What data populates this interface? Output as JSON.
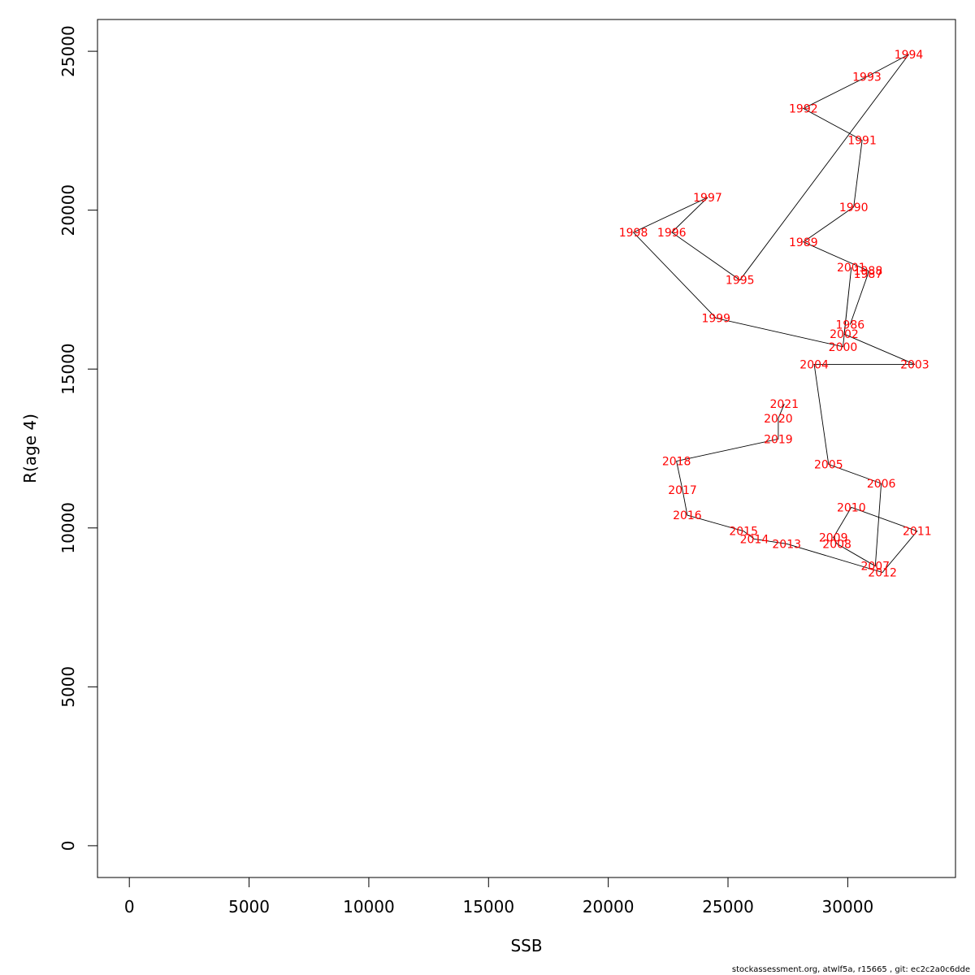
{
  "chart_data": {
    "type": "scatter",
    "xlabel": "SSB",
    "ylabel": "R(age 4)",
    "xlim": [
      -1330,
      34500
    ],
    "ylim": [
      -1000,
      26000
    ],
    "x_ticks": [
      0,
      5000,
      10000,
      15000,
      20000,
      25000,
      30000
    ],
    "y_ticks": [
      0,
      5000,
      10000,
      15000,
      20000,
      25000
    ],
    "label_color": "#ff0000",
    "line_color": "#000000",
    "points": [
      {
        "label": "1986",
        "x": 30100,
        "y": 16400
      },
      {
        "label": "1987",
        "x": 30850,
        "y": 18000
      },
      {
        "label": "1988",
        "x": 30850,
        "y": 18100
      },
      {
        "label": "1989",
        "x": 28150,
        "y": 19000
      },
      {
        "label": "1990",
        "x": 30250,
        "y": 20100
      },
      {
        "label": "1991",
        "x": 30600,
        "y": 22200
      },
      {
        "label": "1992",
        "x": 28150,
        "y": 23200
      },
      {
        "label": "1993",
        "x": 30800,
        "y": 24200
      },
      {
        "label": "1994",
        "x": 32550,
        "y": 24900
      },
      {
        "label": "1995",
        "x": 25500,
        "y": 17800
      },
      {
        "label": "1996",
        "x": 22650,
        "y": 19300
      },
      {
        "label": "1997",
        "x": 24150,
        "y": 20400
      },
      {
        "label": "1998",
        "x": 21050,
        "y": 19300
      },
      {
        "label": "1999",
        "x": 24500,
        "y": 16600
      },
      {
        "label": "2000",
        "x": 29800,
        "y": 15700
      },
      {
        "label": "2001",
        "x": 30150,
        "y": 18200
      },
      {
        "label": "2002",
        "x": 29850,
        "y": 16100
      },
      {
        "label": "2003",
        "x": 32800,
        "y": 15150
      },
      {
        "label": "2004",
        "x": 28600,
        "y": 15150
      },
      {
        "label": "2005",
        "x": 29200,
        "y": 12000
      },
      {
        "label": "2006",
        "x": 31400,
        "y": 11400
      },
      {
        "label": "2007",
        "x": 31150,
        "y": 8800
      },
      {
        "label": "2008",
        "x": 29550,
        "y": 9500
      },
      {
        "label": "2009",
        "x": 29400,
        "y": 9700
      },
      {
        "label": "2010",
        "x": 30150,
        "y": 10650
      },
      {
        "label": "2011",
        "x": 32900,
        "y": 9900
      },
      {
        "label": "2012",
        "x": 31450,
        "y": 8600
      },
      {
        "label": "2013",
        "x": 27450,
        "y": 9500
      },
      {
        "label": "2014",
        "x": 26100,
        "y": 9650
      },
      {
        "label": "2015",
        "x": 25650,
        "y": 9900
      },
      {
        "label": "2016",
        "x": 23300,
        "y": 10400
      },
      {
        "label": "2017",
        "x": 23100,
        "y": 11200
      },
      {
        "label": "2018",
        "x": 22850,
        "y": 12100
      },
      {
        "label": "2019",
        "x": 27100,
        "y": 12800
      },
      {
        "label": "2020",
        "x": 27100,
        "y": 13450
      },
      {
        "label": "2021",
        "x": 27350,
        "y": 13900
      }
    ]
  },
  "footer": {
    "text": "stockassessment.org, atwlf5a, r15665 , git: ec2c2a0c6dde"
  }
}
